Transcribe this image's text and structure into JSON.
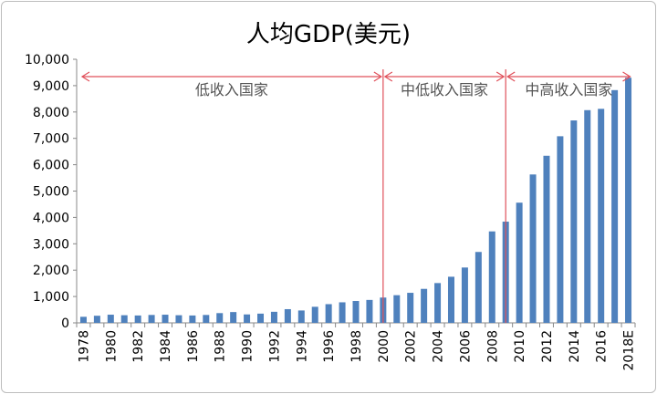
{
  "chart_data": {
    "type": "bar",
    "title": "人均GDP(美元)",
    "xlabel": "",
    "ylabel": "",
    "ylim": [
      0,
      10000
    ],
    "yticks": [
      "0",
      "1,000",
      "2,000",
      "3,000",
      "4,000",
      "5,000",
      "6,000",
      "7,000",
      "8,000",
      "9,000",
      "10,000"
    ],
    "grid": false,
    "categories": [
      "1978",
      "1979",
      "1980",
      "1981",
      "1982",
      "1983",
      "1984",
      "1985",
      "1986",
      "1987",
      "1988",
      "1989",
      "1990",
      "1991",
      "1992",
      "1993",
      "1994",
      "1995",
      "1996",
      "1997",
      "1998",
      "1999",
      "2000",
      "2001",
      "2002",
      "2003",
      "2004",
      "2005",
      "2006",
      "2007",
      "2008",
      "2009",
      "2010",
      "2011",
      "2012",
      "2013",
      "2014",
      "2015",
      "2016",
      "2017",
      "2018E"
    ],
    "values": [
      230,
      270,
      310,
      290,
      280,
      300,
      310,
      290,
      280,
      300,
      370,
      410,
      320,
      350,
      420,
      520,
      470,
      610,
      710,
      780,
      830,
      870,
      960,
      1050,
      1140,
      1290,
      1510,
      1750,
      2100,
      2690,
      3470,
      3840,
      4560,
      5630,
      6340,
      7080,
      7680,
      8070,
      8120,
      8830,
      9300
    ],
    "bar_color": "#4f81bd",
    "annotation_color": "#e0505a",
    "regions": [
      {
        "label": "低收入国家",
        "from": "1978",
        "to": "2000"
      },
      {
        "label": "中低收入国家",
        "from": "2000",
        "to": "2009"
      },
      {
        "label": "中高收入国家",
        "from": "2009",
        "to": "2018E"
      }
    ]
  }
}
